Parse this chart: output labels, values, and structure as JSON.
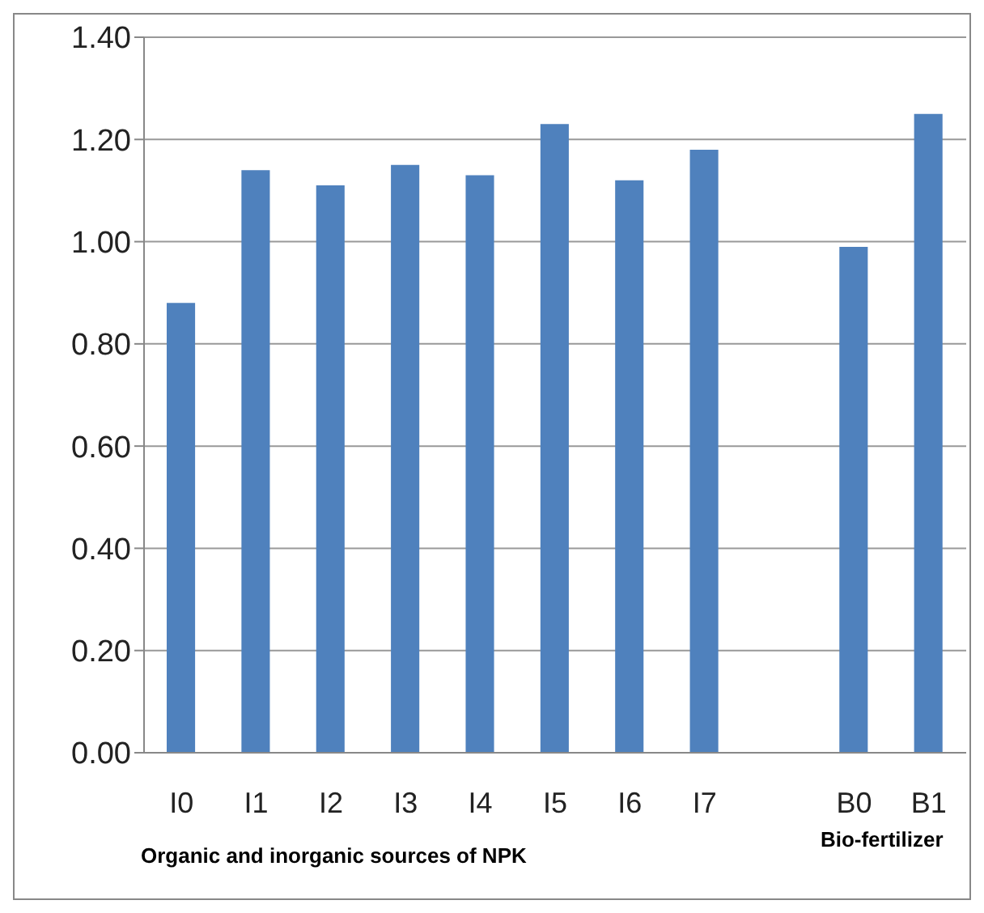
{
  "chart_data": {
    "type": "bar",
    "categories": [
      "I0",
      "I1",
      "I2",
      "I3",
      "I4",
      "I5",
      "I6",
      "I7",
      null,
      "B0",
      "B1"
    ],
    "values": [
      0.88,
      1.14,
      1.11,
      1.15,
      1.13,
      1.23,
      1.12,
      1.18,
      null,
      0.99,
      1.25
    ],
    "color": "#4f81bd",
    "ylim": [
      0,
      1.4
    ],
    "yticks": [
      {
        "value": 0,
        "label": "0.00"
      },
      {
        "value": 0.2,
        "label": "0.20"
      },
      {
        "value": 0.4,
        "label": "0.40"
      },
      {
        "value": 0.6,
        "label": "0.60"
      },
      {
        "value": 0.8,
        "label": "0.80"
      },
      {
        "value": 1,
        "label": "1.00"
      },
      {
        "value": 1.2,
        "label": "1.20"
      },
      {
        "value": 1.4,
        "label": "1.40"
      }
    ],
    "grid": "y",
    "annotations": [
      "Organic and inorganic sources of NPK",
      "Bio-fertilizer"
    ]
  }
}
